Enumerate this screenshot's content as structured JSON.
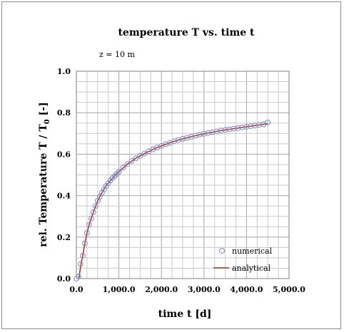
{
  "chart_data": {
    "type": "scatter",
    "title": "temperature T vs. time t",
    "subtitle": "z = 10 m",
    "xlabel": "time t [d]",
    "ylabel_main": "rel. Temperature T / T",
    "ylabel_sub": "0",
    "ylabel_suffix": " [-]",
    "xlim": [
      0,
      5000
    ],
    "ylim": [
      0,
      1.0
    ],
    "x_tick_labels": [
      "0.0",
      "1,000.0",
      "2,000.0",
      "3,000.0",
      "4,000.0",
      "5,000.0"
    ],
    "y_tick_labels": [
      "0.0",
      "0.2",
      "0.4",
      "0.6",
      "0.8",
      "1.0"
    ],
    "grid": true,
    "legend_position": "bottom-right",
    "series": [
      {
        "name": "numerical",
        "marker": "open-circle",
        "color": "#7b93c9",
        "x": [
          0,
          50,
          100,
          150,
          200,
          250,
          300,
          350,
          400,
          450,
          500,
          550,
          600,
          650,
          700,
          750,
          800,
          850,
          900,
          950,
          1000,
          1100,
          1200,
          1300,
          1400,
          1500,
          1600,
          1700,
          1800,
          1900,
          2000,
          2100,
          2200,
          2300,
          2400,
          2500,
          2600,
          2700,
          2800,
          2900,
          3000,
          3100,
          3200,
          3300,
          3400,
          3500,
          3600,
          3700,
          3800,
          3900,
          4000,
          4100,
          4200,
          4300,
          4400,
          4500
        ],
        "y": [
          0.0,
          0.01,
          0.07,
          0.11,
          0.17,
          0.22,
          0.26,
          0.29,
          0.32,
          0.35,
          0.375,
          0.395,
          0.415,
          0.43,
          0.447,
          0.46,
          0.473,
          0.485,
          0.495,
          0.505,
          0.515,
          0.535,
          0.552,
          0.567,
          0.58,
          0.592,
          0.603,
          0.614,
          0.623,
          0.632,
          0.64,
          0.648,
          0.655,
          0.662,
          0.668,
          0.674,
          0.679,
          0.684,
          0.689,
          0.694,
          0.698,
          0.702,
          0.706,
          0.71,
          0.714,
          0.717,
          0.72,
          0.723,
          0.726,
          0.729,
          0.732,
          0.735,
          0.738,
          0.741,
          0.744,
          0.753
        ]
      },
      {
        "name": "analytical",
        "line": "solid",
        "color": "#b5302a",
        "x": [
          60,
          100,
          150,
          200,
          250,
          300,
          400,
          500,
          600,
          700,
          800,
          900,
          1000,
          1200,
          1400,
          1600,
          1800,
          2000,
          2200,
          2400,
          2600,
          2800,
          3000,
          3200,
          3400,
          3600,
          3800,
          4000,
          4200,
          4400,
          4500
        ],
        "y": [
          0.0,
          0.06,
          0.11,
          0.17,
          0.22,
          0.26,
          0.32,
          0.375,
          0.415,
          0.447,
          0.473,
          0.495,
          0.515,
          0.552,
          0.58,
          0.603,
          0.623,
          0.64,
          0.655,
          0.668,
          0.679,
          0.689,
          0.698,
          0.706,
          0.714,
          0.72,
          0.726,
          0.732,
          0.738,
          0.744,
          0.748
        ]
      }
    ]
  }
}
